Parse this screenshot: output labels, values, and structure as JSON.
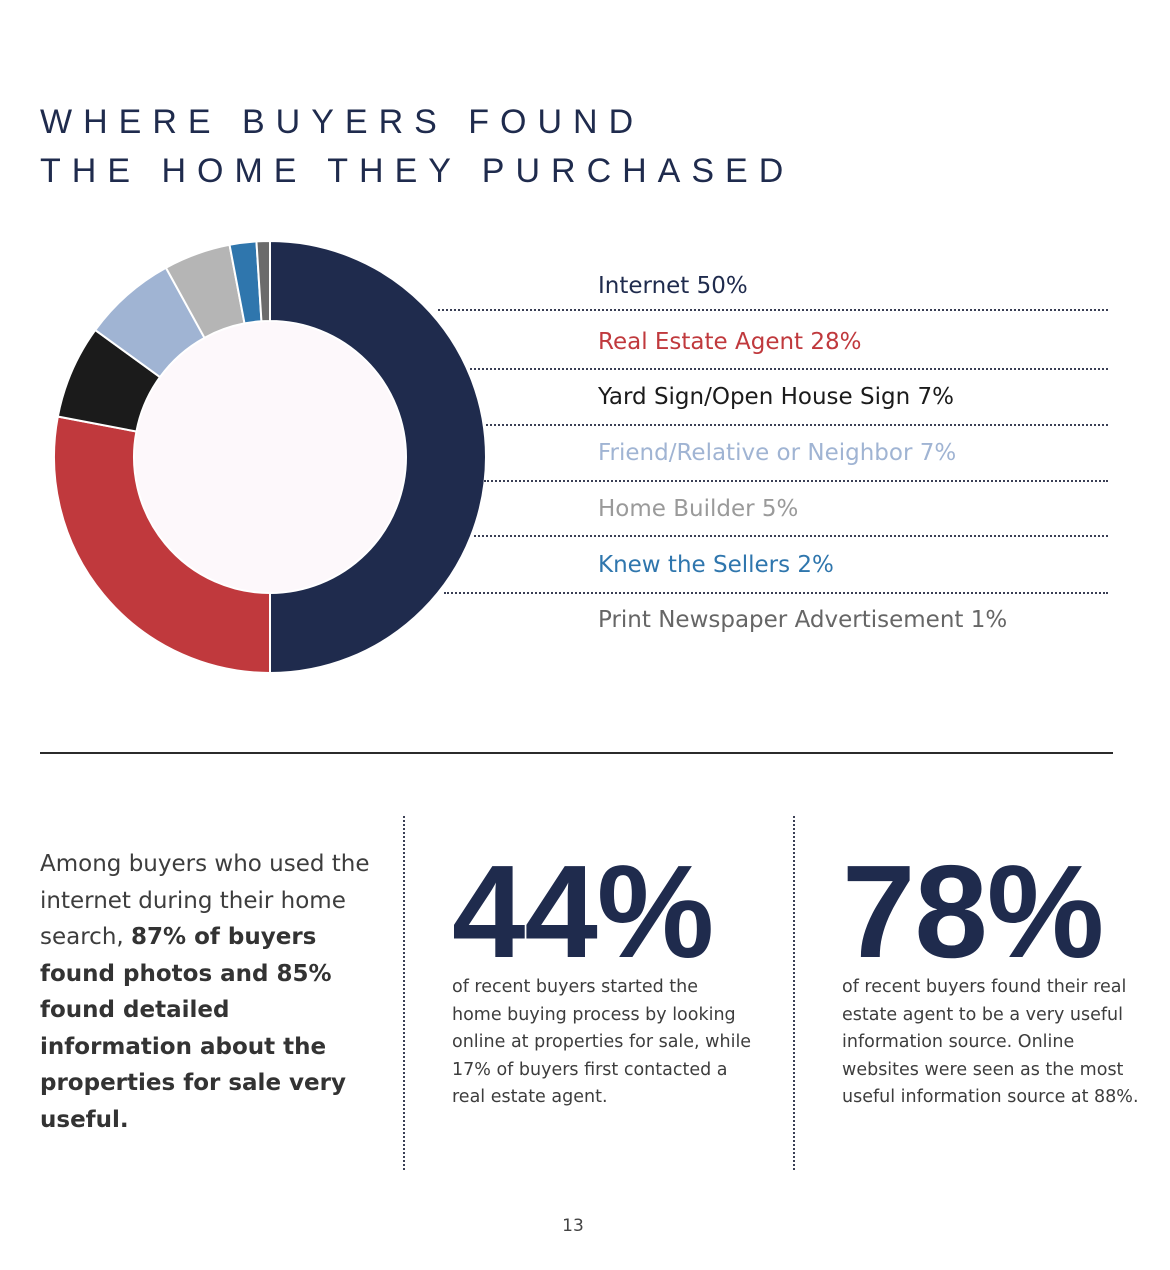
{
  "title": {
    "line1": "WHERE BUYERS FOUND",
    "line2": "THE HOME THEY PURCHASED"
  },
  "chart_data": {
    "type": "pie",
    "donut": true,
    "title": "",
    "slices": [
      {
        "label": "Internet 50%",
        "value": 50,
        "color": "#1f2b4d"
      },
      {
        "label": "Real Estate Agent 28%",
        "value": 28,
        "color": "#c0393d"
      },
      {
        "label": "Yard Sign/Open House Sign 7%",
        "value": 7,
        "color": "#1b1b1b"
      },
      {
        "label": "Friend/Relative or Neighbor 7%",
        "value": 7,
        "color": "#a0b4d3"
      },
      {
        "label": "Home Builder 5%",
        "value": 5,
        "color": "#b5b5b5"
      },
      {
        "label": "Knew the Sellers 2%",
        "value": 2,
        "color": "#2f76ad"
      },
      {
        "label": "Print Newspaper Advertisement 1%",
        "value": 1,
        "color": "#6b6b6b"
      }
    ],
    "legend_text_colors": [
      "#1f2b4d",
      "#c0393d",
      "#1b1b1b",
      "#a0b4d3",
      "#9a9a9a",
      "#2f76ad",
      "#666666"
    ]
  },
  "intro": {
    "plain": "Among buyers who used the internet during their home search,",
    "bold": "87% of buyers found photos and 85% found detailed information about the properties for sale very useful."
  },
  "stats": [
    {
      "value": "44%",
      "text": "of recent buyers started the home buying process by looking online at properties for sale, while 17% of buyers first contacted a real estate agent."
    },
    {
      "value": "78%",
      "text": "of recent buyers found their real estate agent to be a very useful information source. Online websites were seen as the most useful information source at 88%."
    }
  ],
  "page_number": "13"
}
